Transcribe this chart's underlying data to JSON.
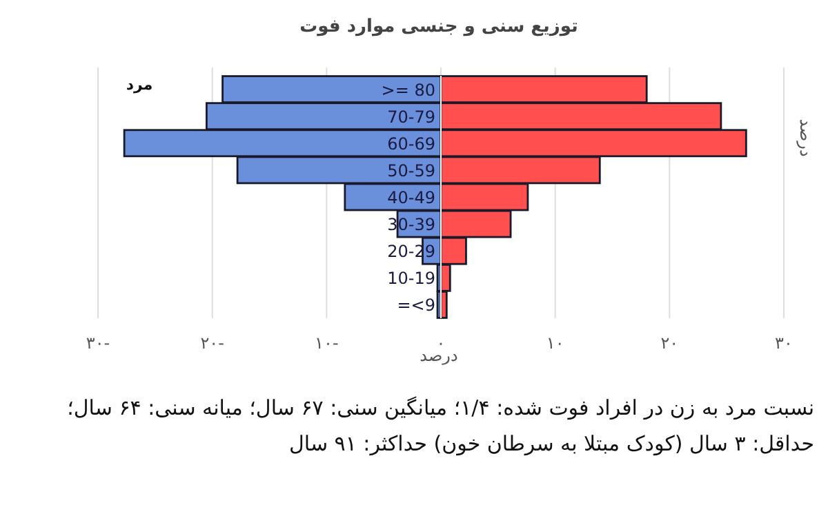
{
  "chart_data": {
    "type": "bar",
    "orientation": "horizontal",
    "stacked": true,
    "title": "توزیع سنی و جنسی موارد فوت",
    "xlabel": "درصد",
    "ylabel": "درصد",
    "categories": [
      ">= 80",
      "70-79",
      "60-69",
      "50-59",
      "40-49",
      "30-39",
      "20-29",
      "10-19",
      "=<9"
    ],
    "series": [
      {
        "name": "مرد",
        "color": "#6a8fdb",
        "values": [
          -19.1,
          -20.5,
          -27.7,
          -17.8,
          -8.4,
          -3.8,
          -1.6,
          -0.3,
          -0.3
        ]
      },
      {
        "color": "#ff4f4f",
        "values": [
          18.0,
          24.5,
          26.7,
          13.9,
          7.6,
          6.1,
          2.2,
          0.8,
          0.5
        ]
      }
    ],
    "xlim": [
      -30,
      30
    ],
    "xticks": [
      {
        "value": -30,
        "label": "۳۰-"
      },
      {
        "value": -20,
        "label": "۲۰-"
      },
      {
        "value": -10,
        "label": "۱۰-"
      },
      {
        "value": 0,
        "label": "۰"
      },
      {
        "value": 10,
        "label": "۱۰"
      },
      {
        "value": 20,
        "label": "۲۰"
      },
      {
        "value": 30,
        "label": "۳۰"
      }
    ],
    "grid": "x",
    "annotations": [
      "نسبت مرد به زن در افراد فوت شده: ۱/۴؛ میانگین سنی: ۶۷ سال؛ میانه سنی: ۶۴ سال؛ حداقل: ۳ سال (کودک مبتلا به سرطان خون) حداکثر: ۹۱ سال"
    ]
  }
}
